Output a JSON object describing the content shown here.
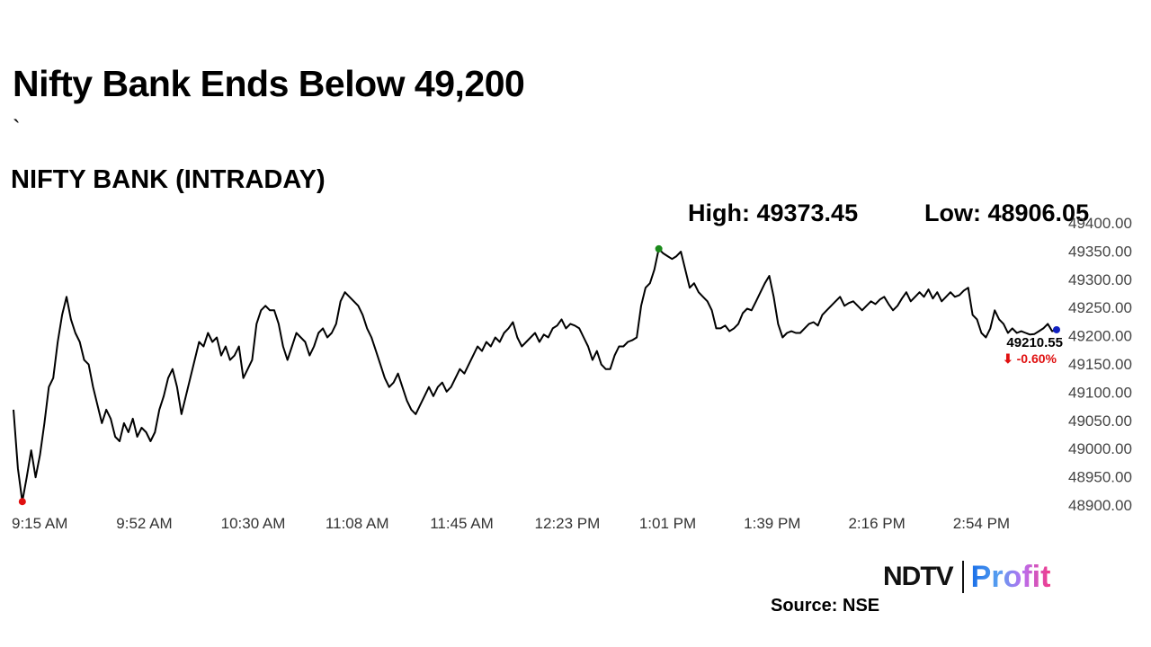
{
  "header": {
    "title": "Nifty Bank Ends Below 49,200",
    "stray_mark": "`",
    "subtitle": "NIFTY BANK (INTRADAY)",
    "high_label": "High: 49373.45",
    "low_label": "Low: 48906.05"
  },
  "footer": {
    "source": "Source: NSE",
    "logo_ndtv": "NDTV",
    "logo_profit": "Profit"
  },
  "chart_data": {
    "type": "line",
    "title": "NIFTY BANK (INTRADAY)",
    "xlabel": "",
    "ylabel": "",
    "start_time": "9:15 AM",
    "end_time": "3:30 PM",
    "x_tick_labels": [
      "9:15 AM",
      "9:52 AM",
      "10:30 AM",
      "11:08 AM",
      "11:45 AM",
      "12:23 PM",
      "1:01 PM",
      "1:39 PM",
      "2:16 PM",
      "2:54 PM"
    ],
    "y_tick_labels": [
      "49400.00",
      "49350.00",
      "49300.00",
      "49250.00",
      "49200.00",
      "49150.00",
      "49100.00",
      "49050.00",
      "49000.00",
      "48950.00",
      "48900.00"
    ],
    "ylim": [
      48900,
      49400
    ],
    "grid": false,
    "high": 49373.45,
    "low": 48906.05,
    "last_value_label": "49210.55",
    "change_label": "⬇ -0.60%",
    "colors": {
      "line": "#000000",
      "high_marker": "#1a8a1a",
      "low_marker": "#e01010",
      "last_marker": "#1020c0",
      "change": "#e01010"
    },
    "values": [
      49069,
      48965,
      48906,
      48949,
      48997,
      48949,
      48989,
      49045,
      49109,
      49125,
      49189,
      49237,
      49269,
      49229,
      49205,
      49189,
      49157,
      49149,
      49109,
      49077,
      49045,
      49069,
      49053,
      49021,
      49013,
      49045,
      49029,
      49053,
      49021,
      49037,
      49029,
      49013,
      49029,
      49069,
      49093,
      49125,
      49141,
      49109,
      49061,
      49093,
      49125,
      49157,
      49189,
      49181,
      49205,
      49189,
      49197,
      49165,
      49181,
      49157,
      49165,
      49181,
      49125,
      49141,
      49157,
      49221,
      49245,
      49253,
      49245,
      49245,
      49221,
      49181,
      49157,
      49181,
      49205,
      49197,
      49189,
      49165,
      49181,
      49205,
      49213,
      49197,
      49205,
      49221,
      49261,
      49277,
      49269,
      49261,
      49253,
      49237,
      49213,
      49197,
      49173,
      49149,
      49125,
      49109,
      49117,
      49133,
      49109,
      49085,
      49069,
      49061,
      49077,
      49093,
      49109,
      49093,
      49109,
      49117,
      49101,
      49109,
      49125,
      49141,
      49133,
      49149,
      49165,
      49181,
      49173,
      49189,
      49181,
      49197,
      49189,
      49205,
      49213,
      49224,
      49197,
      49181,
      49189,
      49197,
      49205,
      49189,
      49202,
      49197,
      49213,
      49218,
      49229,
      49213,
      49221,
      49218,
      49213,
      49197,
      49181,
      49157,
      49173,
      49149,
      49141,
      49141,
      49165,
      49181,
      49181,
      49189,
      49192,
      49197,
      49253,
      49285,
      49293,
      49317,
      49354,
      49346,
      49341,
      49336,
      49341,
      49349,
      49317,
      49285,
      49293,
      49277,
      49269,
      49261,
      49245,
      49213,
      49213,
      49218,
      49208,
      49213,
      49221,
      49240,
      49248,
      49245,
      49261,
      49277,
      49293,
      49306,
      49269,
      49221,
      49197,
      49205,
      49208,
      49205,
      49205,
      49213,
      49221,
      49224,
      49218,
      49237,
      49245,
      49253,
      49261,
      49269,
      49253,
      49258,
      49261,
      49253,
      49245,
      49253,
      49261,
      49256,
      49264,
      49269,
      49256,
      49245,
      49253,
      49266,
      49277,
      49261,
      49269,
      49277,
      49269,
      49282,
      49266,
      49277,
      49261,
      49269,
      49277,
      49269,
      49272,
      49280,
      49285,
      49237,
      49229,
      49205,
      49197,
      49213,
      49245,
      49229,
      49221,
      49205,
      49213,
      49205,
      49208,
      49205,
      49202,
      49203,
      49208,
      49213,
      49221,
      49208,
      49210.55
    ]
  }
}
